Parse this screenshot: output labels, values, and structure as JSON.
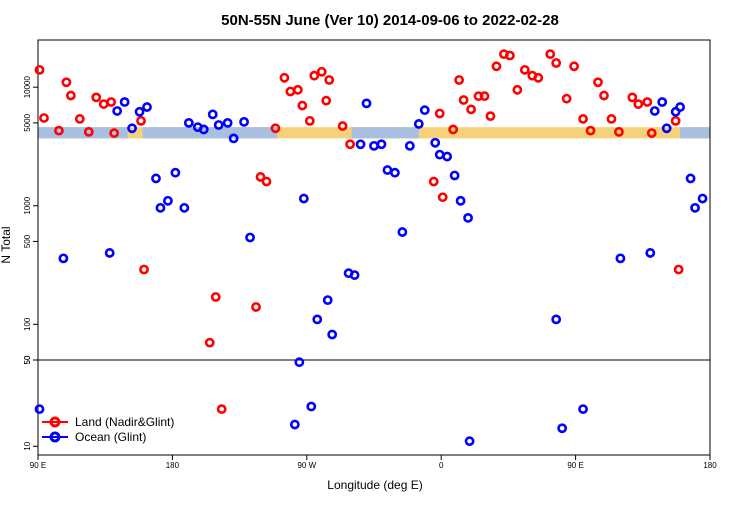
{
  "chart_data": {
    "type": "scatter",
    "title": "50N-55N June (Ver 10)   2014-09-06 to 2022-02-28",
    "xlabel": "Longitude (deg E)",
    "ylabel": "N Total",
    "x_tick_labels": [
      "90 E",
      "180",
      "90 W",
      "0",
      "90 E",
      "180"
    ],
    "x_tick_values": [
      90,
      180,
      270,
      360,
      450,
      540
    ],
    "xlim": [
      90,
      540
    ],
    "upper_panel": {
      "scale": "log",
      "ylim": [
        50,
        25000
      ],
      "y_ticks": [
        50,
        100,
        500,
        1000,
        5000,
        10000
      ],
      "y_tick_labels": [
        "50",
        "100",
        "500",
        "1000",
        "5000",
        "10000"
      ],
      "band": {
        "y_min": 3700,
        "y_max": 4600
      }
    },
    "lower_panel": {
      "scale": "log",
      "ylim": [
        8.5,
        50
      ],
      "y_ticks": [
        10,
        50
      ],
      "y_tick_labels": [
        "10",
        "50"
      ]
    },
    "legend": {
      "position": "bottom-left"
    },
    "colors": {
      "land": "#ff0000",
      "ocean": "#0000ff",
      "band_land": "#f5d27a",
      "band_ocean": "#a9bfe0"
    },
    "series": [
      {
        "name": "Land (Nadir&Glint)",
        "color": "#ff0000",
        "points": [
          [
            91,
            14000
          ],
          [
            94,
            5500
          ],
          [
            104,
            4300
          ],
          [
            109,
            11000
          ],
          [
            112,
            8500
          ],
          [
            118,
            5400
          ],
          [
            124,
            4200
          ],
          [
            129,
            8200
          ],
          [
            134,
            7200
          ],
          [
            139,
            7500
          ],
          [
            141,
            4100
          ],
          [
            159,
            5200
          ],
          [
            161,
            290
          ],
          [
            205,
            70
          ],
          [
            209,
            170
          ],
          [
            213,
            20
          ],
          [
            236,
            140
          ],
          [
            239,
            1750
          ],
          [
            243,
            1600
          ],
          [
            249,
            4500
          ],
          [
            255,
            12000
          ],
          [
            259,
            9200
          ],
          [
            264,
            9500
          ],
          [
            267,
            7000
          ],
          [
            272,
            5200
          ],
          [
            275,
            12500
          ],
          [
            280,
            13500
          ],
          [
            283,
            7700
          ],
          [
            285,
            11500
          ],
          [
            294,
            4700
          ],
          [
            299,
            3300
          ],
          [
            355,
            1600
          ],
          [
            359,
            6000
          ],
          [
            361,
            1180
          ],
          [
            368,
            4400
          ],
          [
            372,
            11500
          ],
          [
            375,
            7800
          ],
          [
            380,
            6500
          ],
          [
            385,
            8400
          ],
          [
            389,
            8400
          ],
          [
            393,
            5700
          ],
          [
            397,
            15000
          ],
          [
            402,
            19000
          ],
          [
            406,
            18500
          ],
          [
            411,
            9500
          ],
          [
            416,
            14000
          ],
          [
            421,
            12500
          ],
          [
            425,
            12000
          ],
          [
            433,
            19000
          ],
          [
            437,
            16000
          ],
          [
            444,
            8000
          ],
          [
            449,
            15000
          ],
          [
            455,
            5400
          ],
          [
            460,
            4300
          ],
          [
            465,
            11000
          ],
          [
            469,
            8500
          ],
          [
            474,
            5400
          ],
          [
            479,
            4200
          ],
          [
            488,
            8200
          ],
          [
            492,
            7200
          ],
          [
            498,
            7500
          ],
          [
            501,
            4100
          ],
          [
            517,
            5200
          ],
          [
            519,
            290
          ]
        ]
      },
      {
        "name": "Ocean (Glint)",
        "color": "#0000ff",
        "points": [
          [
            91,
            20
          ],
          [
            107,
            360
          ],
          [
            138,
            400
          ],
          [
            143,
            6300
          ],
          [
            148,
            7500
          ],
          [
            153,
            4500
          ],
          [
            158,
            6200
          ],
          [
            163,
            6800
          ],
          [
            169,
            1700
          ],
          [
            172,
            960
          ],
          [
            177,
            1100
          ],
          [
            182,
            1900
          ],
          [
            188,
            960
          ],
          [
            191,
            5000
          ],
          [
            197,
            4600
          ],
          [
            201,
            4400
          ],
          [
            207,
            5900
          ],
          [
            211,
            4800
          ],
          [
            217,
            5000
          ],
          [
            221,
            3700
          ],
          [
            228,
            5100
          ],
          [
            232,
            540
          ],
          [
            262,
            15
          ],
          [
            265,
            48
          ],
          [
            268,
            1150
          ],
          [
            273,
            21
          ],
          [
            277,
            110
          ],
          [
            284,
            160
          ],
          [
            287,
            82
          ],
          [
            298,
            270
          ],
          [
            302,
            260
          ],
          [
            306,
            3300
          ],
          [
            310,
            7300
          ],
          [
            315,
            3200
          ],
          [
            320,
            3300
          ],
          [
            324,
            2000
          ],
          [
            329,
            1900
          ],
          [
            334,
            600
          ],
          [
            339,
            3200
          ],
          [
            345,
            4900
          ],
          [
            349,
            6400
          ],
          [
            356,
            3400
          ],
          [
            359,
            2700
          ],
          [
            364,
            2600
          ],
          [
            369,
            1800
          ],
          [
            373,
            1100
          ],
          [
            378,
            790
          ],
          [
            379,
            11
          ],
          [
            437,
            110
          ],
          [
            441,
            14
          ],
          [
            455,
            20
          ],
          [
            480,
            360
          ],
          [
            500,
            400
          ],
          [
            503,
            6300
          ],
          [
            508,
            7500
          ],
          [
            511,
            4500
          ],
          [
            517,
            6200
          ],
          [
            520,
            6800
          ],
          [
            527,
            1700
          ],
          [
            530,
            960
          ],
          [
            535,
            1150
          ]
        ]
      }
    ]
  }
}
